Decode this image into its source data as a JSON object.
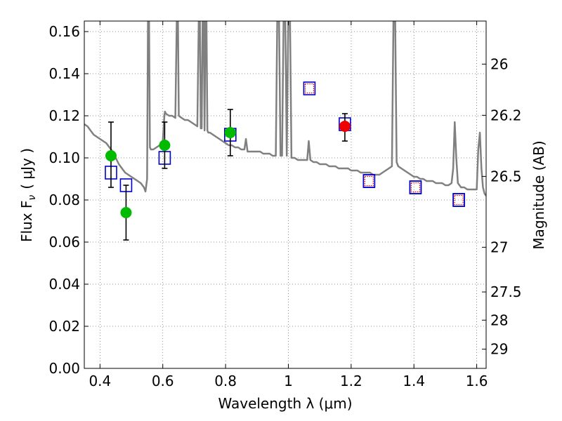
{
  "chart_data": {
    "type": "scatter",
    "title": "",
    "xlabel": "Wavelength  λ (μm)",
    "ylabel": "Flux  F",
    "ylabel_sub": "ν",
    "ylabel_unit": "( μJy )",
    "ylabel_right": "Magnitude (AB)",
    "xlim": [
      0.35,
      1.63
    ],
    "ylim": [
      0.0,
      0.165
    ],
    "grid": true,
    "x_ticks": [
      0.4,
      0.6,
      0.8,
      1.0,
      1.2,
      1.4,
      1.6
    ],
    "x_tick_labels": [
      "0.4",
      "0.6",
      "0.8",
      "1",
      "1.2",
      "1.4",
      "1.6"
    ],
    "y_ticks": [
      0.0,
      0.02,
      0.04,
      0.06,
      0.08,
      0.1,
      0.12,
      0.14,
      0.16
    ],
    "y_tick_labels": [
      "0.00",
      "0.02",
      "0.04",
      "0.06",
      "0.08",
      "0.10",
      "0.12",
      "0.14",
      "0.16"
    ],
    "right_ticks": [
      {
        "label": "26",
        "mag": 26.0
      },
      {
        "label": "26.2",
        "mag": 26.2
      },
      {
        "label": "26.5",
        "mag": 26.5
      },
      {
        "label": "27",
        "mag": 27.0
      },
      {
        "label": "27.5",
        "mag": 27.5
      },
      {
        "label": "28",
        "mag": 28.0
      },
      {
        "label": "29",
        "mag": 29.0
      }
    ],
    "series": [
      {
        "kind": "line",
        "color": "#808080",
        "x": [
          0.35,
          0.36,
          0.37,
          0.38,
          0.39,
          0.4,
          0.41,
          0.42,
          0.43,
          0.44,
          0.45,
          0.46,
          0.47,
          0.48,
          0.49,
          0.5,
          0.51,
          0.52,
          0.53,
          0.54,
          0.545,
          0.55,
          0.553,
          0.556,
          0.559,
          0.562,
          0.57,
          0.58,
          0.59,
          0.6,
          0.605,
          0.607,
          0.61,
          0.62,
          0.63,
          0.64,
          0.645,
          0.648,
          0.651,
          0.66,
          0.67,
          0.68,
          0.69,
          0.7,
          0.71,
          0.715,
          0.718,
          0.721,
          0.724,
          0.727,
          0.73,
          0.733,
          0.736,
          0.739,
          0.742,
          0.745,
          0.75,
          0.76,
          0.77,
          0.78,
          0.79,
          0.8,
          0.81,
          0.82,
          0.83,
          0.84,
          0.85,
          0.86,
          0.865,
          0.87,
          0.88,
          0.89,
          0.9,
          0.91,
          0.92,
          0.93,
          0.94,
          0.95,
          0.96,
          0.965,
          0.97,
          0.975,
          0.98,
          0.985,
          0.99,
          0.995,
          1.0,
          1.005,
          1.01,
          1.02,
          1.03,
          1.04,
          1.05,
          1.06,
          1.065,
          1.07,
          1.08,
          1.09,
          1.1,
          1.11,
          1.12,
          1.13,
          1.14,
          1.15,
          1.16,
          1.17,
          1.18,
          1.19,
          1.2,
          1.21,
          1.22,
          1.23,
          1.24,
          1.25,
          1.26,
          1.27,
          1.28,
          1.29,
          1.3,
          1.31,
          1.32,
          1.33,
          1.335,
          1.34,
          1.345,
          1.35,
          1.36,
          1.37,
          1.38,
          1.39,
          1.4,
          1.41,
          1.42,
          1.43,
          1.44,
          1.45,
          1.46,
          1.47,
          1.48,
          1.49,
          1.5,
          1.51,
          1.52,
          1.525,
          1.53,
          1.535,
          1.54,
          1.55,
          1.56,
          1.57,
          1.58,
          1.59,
          1.6,
          1.605,
          1.61,
          1.615,
          1.62,
          1.625,
          1.63
        ],
        "y": [
          0.116,
          0.115,
          0.113,
          0.111,
          0.11,
          0.109,
          0.108,
          0.107,
          0.105,
          0.103,
          0.1,
          0.097,
          0.095,
          0.093,
          0.092,
          0.091,
          0.09,
          0.089,
          0.088,
          0.086,
          0.084,
          0.09,
          0.17,
          0.17,
          0.105,
          0.104,
          0.104,
          0.105,
          0.106,
          0.108,
          0.12,
          0.122,
          0.121,
          0.12,
          0.12,
          0.119,
          0.17,
          0.17,
          0.12,
          0.119,
          0.118,
          0.118,
          0.117,
          0.116,
          0.115,
          0.17,
          0.17,
          0.114,
          0.114,
          0.17,
          0.17,
          0.113,
          0.17,
          0.17,
          0.113,
          0.112,
          0.112,
          0.111,
          0.11,
          0.109,
          0.108,
          0.107,
          0.106,
          0.106,
          0.105,
          0.105,
          0.104,
          0.104,
          0.109,
          0.103,
          0.103,
          0.103,
          0.103,
          0.103,
          0.102,
          0.102,
          0.102,
          0.101,
          0.101,
          0.17,
          0.17,
          0.101,
          0.101,
          0.17,
          0.17,
          0.101,
          0.17,
          0.17,
          0.1,
          0.1,
          0.099,
          0.099,
          0.099,
          0.099,
          0.108,
          0.099,
          0.098,
          0.098,
          0.097,
          0.097,
          0.097,
          0.096,
          0.096,
          0.096,
          0.095,
          0.095,
          0.095,
          0.095,
          0.094,
          0.094,
          0.094,
          0.093,
          0.093,
          0.093,
          0.093,
          0.092,
          0.092,
          0.092,
          0.093,
          0.094,
          0.095,
          0.096,
          0.17,
          0.17,
          0.098,
          0.096,
          0.095,
          0.094,
          0.093,
          0.092,
          0.091,
          0.091,
          0.09,
          0.09,
          0.089,
          0.089,
          0.089,
          0.088,
          0.088,
          0.088,
          0.087,
          0.087,
          0.088,
          0.095,
          0.117,
          0.1,
          0.088,
          0.086,
          0.086,
          0.085,
          0.085,
          0.085,
          0.085,
          0.104,
          0.112,
          0.095,
          0.086,
          0.083,
          0.082
        ]
      },
      {
        "kind": "scatter",
        "marker": "open-square",
        "edgecolor": "#0000cc",
        "x": [
          0.435,
          0.483,
          0.606,
          0.815,
          1.18,
          1.257,
          1.405,
          1.543
        ],
        "y": [
          0.093,
          0.087,
          0.1,
          0.111,
          0.116,
          0.089,
          0.086,
          0.08
        ]
      },
      {
        "kind": "scatter",
        "marker": "open-square",
        "edgecolor": "#0000cc",
        "inner": "dotted-square",
        "inner_color": "#dd0000",
        "x": [
          1.067,
          1.257,
          1.405,
          1.543
        ],
        "y": [
          0.133,
          0.089,
          0.086,
          0.08
        ]
      },
      {
        "kind": "scatter",
        "marker": "filled-circle",
        "color": "#00bb00",
        "x": [
          0.435,
          0.483,
          0.606,
          0.815
        ],
        "y": [
          0.101,
          0.074,
          0.106,
          0.112
        ],
        "err_low": [
          0.086,
          0.061,
          0.095,
          0.101
        ],
        "err_high": [
          0.117,
          0.087,
          0.117,
          0.123
        ]
      },
      {
        "kind": "scatter",
        "marker": "filled-circle",
        "color": "#ee0000",
        "x": [
          1.18
        ],
        "y": [
          0.115
        ],
        "err_low": [
          0.108
        ],
        "err_high": [
          0.121
        ]
      }
    ]
  }
}
